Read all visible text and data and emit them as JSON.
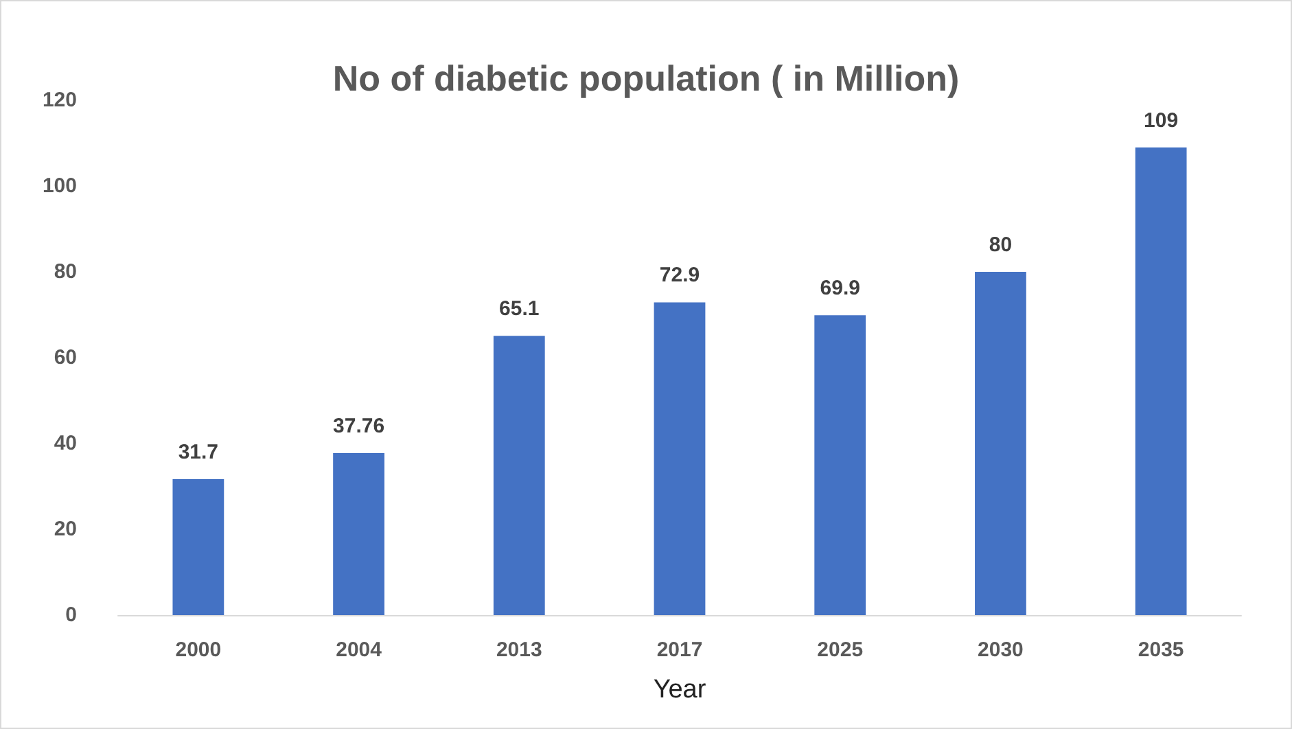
{
  "chart_data": {
    "type": "bar",
    "title": "No of diabetic population ( in Million)",
    "xlabel": "Year",
    "categories": [
      "2000",
      "2004",
      "2013",
      "2017",
      "2025",
      "2030",
      "2035"
    ],
    "values": [
      31.7,
      37.76,
      65.1,
      72.9,
      69.9,
      80,
      109
    ],
    "color": "#4472c4",
    "ylim": [
      0,
      120
    ],
    "yticks": [
      0,
      20,
      40,
      60,
      80,
      100,
      120
    ],
    "grid": false,
    "data_labels": true
  }
}
